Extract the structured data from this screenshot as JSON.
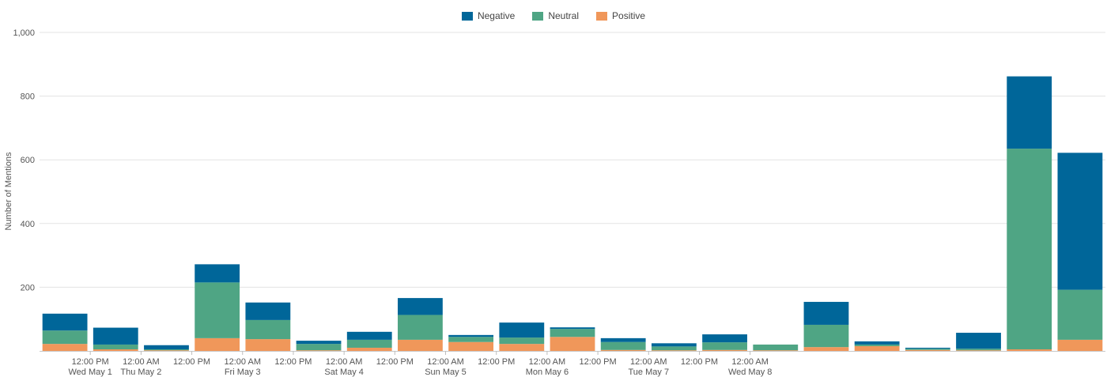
{
  "chart_data": {
    "type": "bar",
    "stacked": true,
    "ylabel": "Number of Mentions",
    "ylim": [
      0,
      1000
    ],
    "y_ticks": [
      "200",
      "400",
      "600",
      "800",
      "1,000"
    ],
    "grid": true,
    "legend_position": "top-center",
    "x_tick_labels": [
      {
        "time": "12:00 PM",
        "date": "Wed May 1"
      },
      {
        "time": "12:00 AM",
        "date": "Thu May 2"
      },
      {
        "time": "12:00 PM",
        "date": ""
      },
      {
        "time": "12:00 AM",
        "date": "Fri May 3"
      },
      {
        "time": "12:00 PM",
        "date": ""
      },
      {
        "time": "12:00 AM",
        "date": "Sat May 4"
      },
      {
        "time": "12:00 PM",
        "date": ""
      },
      {
        "time": "12:00 AM",
        "date": "Sun May 5"
      },
      {
        "time": "12:00 PM",
        "date": ""
      },
      {
        "time": "12:00 AM",
        "date": "Mon May 6"
      },
      {
        "time": "12:00 PM",
        "date": ""
      },
      {
        "time": "12:00 AM",
        "date": "Tue May 7"
      },
      {
        "time": "12:00 PM",
        "date": ""
      },
      {
        "time": "12:00 AM",
        "date": "Wed May 8"
      }
    ],
    "series": [
      {
        "name": "Positive",
        "color": "#f0975a",
        "values": [
          22,
          5,
          2,
          40,
          37,
          2,
          10,
          35,
          28,
          22,
          44,
          3,
          2,
          3,
          2,
          12,
          15,
          3,
          2,
          5,
          35
        ]
      },
      {
        "name": "Neutral",
        "color": "#4fa584",
        "values": [
          42,
          15,
          3,
          175,
          60,
          20,
          25,
          78,
          16,
          20,
          25,
          25,
          12,
          24,
          18,
          70,
          5,
          4,
          5,
          630,
          157
        ]
      },
      {
        "name": "Negative",
        "color": "#006699",
        "values": [
          53,
          53,
          13,
          57,
          55,
          10,
          25,
          53,
          6,
          47,
          5,
          12,
          10,
          25,
          0,
          72,
          10,
          3,
          50,
          227,
          430
        ]
      }
    ]
  },
  "legend": [
    {
      "name": "Negative",
      "color": "#006699"
    },
    {
      "name": "Neutral",
      "color": "#4fa584"
    },
    {
      "name": "Positive",
      "color": "#f0975a"
    }
  ]
}
